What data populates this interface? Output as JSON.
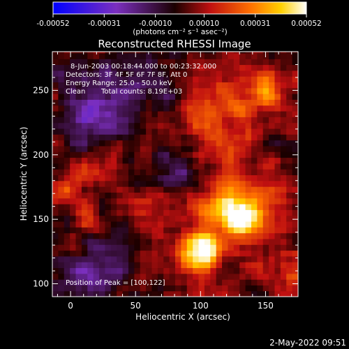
{
  "colorbar": {
    "ticks": [
      "-0.00052",
      "-0.00031",
      "-0.00010",
      "0.00010",
      "0.00031",
      "0.00052"
    ],
    "units": "(photons cm⁻² s⁻¹ asec⁻²)"
  },
  "header": {
    "title": "Reconstructed RHESSI Image"
  },
  "annotations": {
    "line1": "8-Jun-2003 00:18:44.000 to 00:23:32.000",
    "line2": "Detectors: 3F 4F 5F 6F 7F 8F, Att 0",
    "line3": "Energy Range: 25.0 - 50.0 keV",
    "line4_left": "Clean",
    "line4_right": "Total counts: 8.19E+03",
    "peak": "Position of Peak = [100,122]"
  },
  "footer": {
    "timestamp": "2-May-2022 09:51"
  },
  "chart_data": {
    "type": "heatmap",
    "title": "Reconstructed RHESSI Image",
    "xlabel": "Heliocentric X (arcsec)",
    "ylabel": "Heliocentric Y (arcsec)",
    "xlim": [
      -14,
      175
    ],
    "ylim": [
      90,
      280
    ],
    "xticks": [
      0,
      50,
      100,
      150
    ],
    "yticks": [
      100,
      150,
      200,
      250
    ],
    "x_tick_labels": [
      "0",
      "50",
      "100",
      "150"
    ],
    "y_tick_labels": [
      "100",
      "150",
      "200",
      "250"
    ],
    "colorscale": {
      "min": -0.00052,
      "max": 0.00052,
      "stops": [
        "#0000ff",
        "#7b2fbf",
        "#1a0000",
        "#c01010",
        "#ff7000",
        "#ffd000",
        "#ffffff"
      ]
    },
    "peak": [
      100,
      122
    ],
    "sources": [
      {
        "x": 100,
        "y": 125,
        "amplitude": 0.00052,
        "width": 11
      },
      {
        "x": 133,
        "y": 152,
        "amplitude": 0.00048,
        "width": 10
      },
      {
        "x": 118,
        "y": 160,
        "amplitude": 0.00028,
        "width": 14
      },
      {
        "x": 150,
        "y": 170,
        "amplitude": 0.00022,
        "width": 12
      },
      {
        "x": 155,
        "y": 247,
        "amplitude": 0.00024,
        "width": 10
      },
      {
        "x": 135,
        "y": 242,
        "amplitude": 0.00018,
        "width": 12
      },
      {
        "x": 105,
        "y": 235,
        "amplitude": 0.00016,
        "width": 14
      },
      {
        "x": 120,
        "y": 205,
        "amplitude": 0.00012,
        "width": 16
      },
      {
        "x": 60,
        "y": 160,
        "amplitude": 0.00012,
        "width": 14
      },
      {
        "x": 25,
        "y": 195,
        "amplitude": 0.00012,
        "width": 12
      },
      {
        "x": -5,
        "y": 175,
        "amplitude": 0.00014,
        "width": 10
      },
      {
        "x": 10,
        "y": 150,
        "amplitude": 8e-05,
        "width": 10
      },
      {
        "x": 165,
        "y": 115,
        "amplitude": 0.00012,
        "width": 12
      },
      {
        "x": 20,
        "y": 230,
        "amplitude": -0.00028,
        "width": 18
      },
      {
        "x": 20,
        "y": 110,
        "amplitude": -0.00024,
        "width": 16
      },
      {
        "x": 50,
        "y": 260,
        "amplitude": -0.00018,
        "width": 16
      },
      {
        "x": 80,
        "y": 190,
        "amplitude": -0.00014,
        "width": 14
      },
      {
        "x": 0,
        "y": 270,
        "amplitude": -0.0001,
        "width": 12
      }
    ]
  }
}
